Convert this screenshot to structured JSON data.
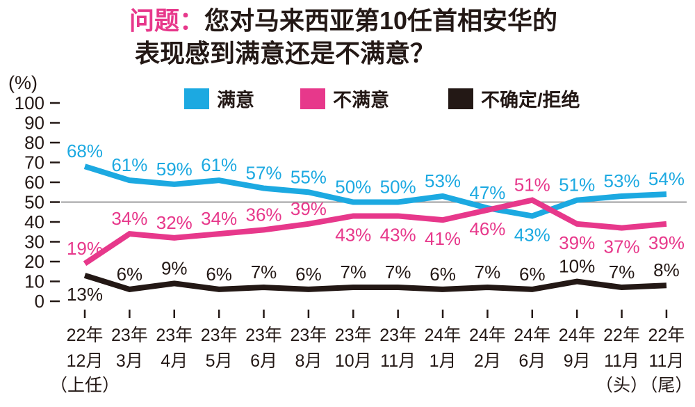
{
  "header": {
    "title_prefix": "问题：",
    "title_line1": "您对马来西亚第10任首相安华的",
    "title_line2": "表现感到满意还是不满意？",
    "accent_color": "#E7388B",
    "text_color": "#231815"
  },
  "legend": [
    {
      "key": "satisfied",
      "label": "满意",
      "color": "#1CA9E1"
    },
    {
      "key": "dissatisfied",
      "label": "不满意",
      "color": "#E7388B"
    },
    {
      "key": "unsure",
      "label": "不确定/拒绝",
      "color": "#231815"
    }
  ],
  "y_axis": {
    "unit_label": "(%)",
    "ticks": [
      100,
      90,
      80,
      70,
      60,
      50,
      40,
      30,
      20,
      10,
      0
    ]
  },
  "chart_data": {
    "type": "line",
    "title": "问题：您对马来西亚第10任首相安华的表现感到满意还是不满意？",
    "ylabel": "(%)",
    "ylim": [
      0,
      100
    ],
    "grid": false,
    "reference_line": 50,
    "reference_line_color": "#9E9E9F",
    "legend_position": "top",
    "categories": [
      [
        "22年",
        "12月",
        "（上任）"
      ],
      [
        "23年",
        "3月"
      ],
      [
        "23年",
        "4月"
      ],
      [
        "23年",
        "5月"
      ],
      [
        "23年",
        "6月"
      ],
      [
        "23年",
        "8月"
      ],
      [
        "23年",
        "10月"
      ],
      [
        "23年",
        "11月"
      ],
      [
        "24年",
        "1月"
      ],
      [
        "24年",
        "2月"
      ],
      [
        "24年",
        "6月"
      ],
      [
        "24年",
        "9月"
      ],
      [
        "22年",
        "11月",
        "（头）"
      ],
      [
        "22年",
        "11月",
        "（尾）"
      ]
    ],
    "series": [
      {
        "name": "满意",
        "key": "satisfied",
        "color": "#1CA9E1",
        "values": [
          68,
          61,
          59,
          61,
          57,
          55,
          50,
          50,
          53,
          47,
          43,
          51,
          53,
          54
        ],
        "label_side": [
          "above",
          "above",
          "above",
          "above",
          "above",
          "above",
          "above",
          "above",
          "above",
          "above",
          "below",
          "above",
          "above",
          "above"
        ]
      },
      {
        "name": "不满意",
        "key": "dissatisfied",
        "color": "#E7388B",
        "values": [
          19,
          34,
          32,
          34,
          36,
          39,
          43,
          43,
          41,
          46,
          51,
          39,
          37,
          39
        ],
        "label_side": [
          "above",
          "above",
          "above",
          "above",
          "above",
          "above",
          "below",
          "below",
          "below",
          "below",
          "above",
          "below",
          "below",
          "below"
        ]
      },
      {
        "name": "不确定/拒绝",
        "key": "unsure",
        "color": "#231815",
        "values": [
          13,
          6,
          9,
          6,
          7,
          6,
          7,
          7,
          6,
          7,
          6,
          10,
          7,
          8
        ],
        "label_side": [
          "below",
          "above",
          "above",
          "above",
          "above",
          "above",
          "above",
          "above",
          "above",
          "above",
          "above",
          "above",
          "above",
          "above"
        ]
      }
    ]
  }
}
